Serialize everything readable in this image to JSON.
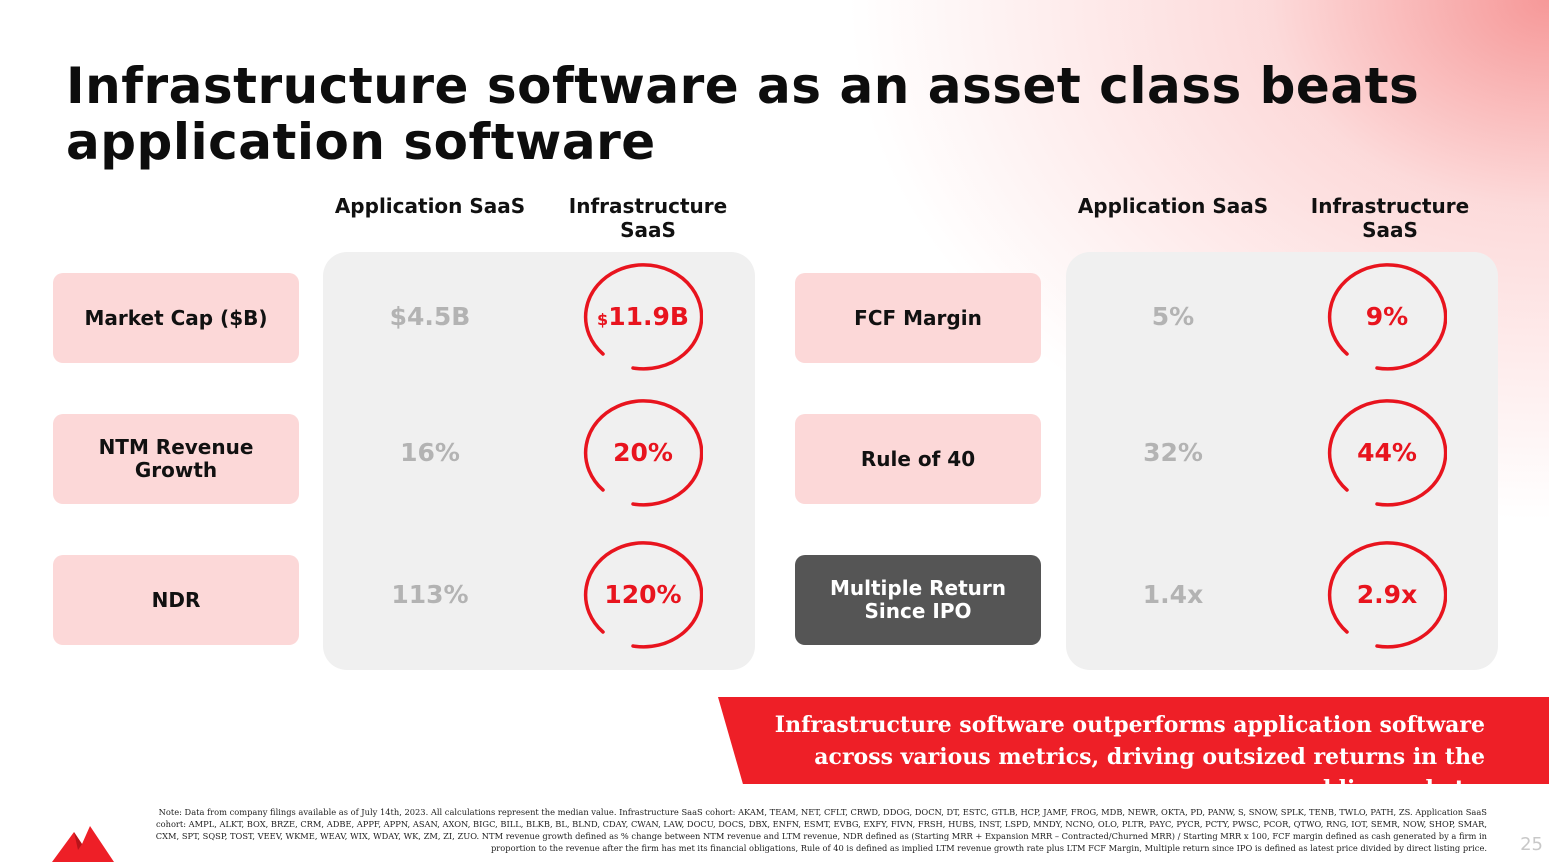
{
  "title": "Infrastructure software as an asset class beats application software",
  "headers": {
    "app": "Application SaaS",
    "infra": "Infrastructure SaaS"
  },
  "left_metrics": [
    {
      "label": "Market Cap ($B)",
      "app": "$4.5B",
      "infra_prefix": "$",
      "infra": "11.9B"
    },
    {
      "label": "NTM Revenue Growth",
      "app": "16%",
      "infra": "20%"
    },
    {
      "label": "NDR",
      "app": "113%",
      "infra": "120%"
    }
  ],
  "right_metrics": [
    {
      "label": "FCF Margin",
      "app": "5%",
      "infra": "9%"
    },
    {
      "label": "Rule of 40",
      "app": "32%",
      "infra": "44%"
    },
    {
      "label": "Multiple Return Since IPO",
      "app": "1.4x",
      "infra": "2.9x"
    }
  ],
  "banner": "Infrastructure software outperforms application software across various metrics, driving outsized returns in the public markets.",
  "note": "Note: Data from company filings available as of July 14th, 2023. All calculations represent the median value. Infrastructure SaaS cohort: AKAM, TEAM, NET, CFLT, CRWD, DDOG, DOCN, DT, ESTC, GTLB, HCP, JAMF, FROG, MDB, NEWR, OKTA, PD, PANW, S, SNOW, SPLK, TENB, TWLO, PATH, ZS. Application SaaS cohort: AMPL, ALKT, BOX, BRZE, CRM, ADBE, APPF, APPN, ASAN, AXON, BIGC, BILL, BLKB, BL, BLND, CDAY, CWAN, LAW, DOCU, DOCS, DBX, ENFN, ESMT, EVBG, EXFY, FIVN, FRSH, HUBS, INST, LSPD, MNDY, NCNO, OLO, PLTR, PAYC, PYCR, PCTY, PWSC, PCOR, QTWO, RNG, IOT, SEMR, NOW, SHOP, SMAR, CXM, SPT, SQSP, TOST, VEEV, WKME, WEAV, WIX, WDAY, WK, ZM, ZI, ZUO. NTM revenue growth defined as % change between NTM revenue and LTM revenue, NDR defined as (Starting MRR + Expansion MRR – Contracted/Churned MRR) / Starting MRR x 100, FCF margin defined as cash generated by a firm in proportion to the revenue after the firm has met its financial obligations, Rule of 40 is defined as implied LTM revenue growth rate plus LTM FCF Margin, Multiple return since IPO is defined as latest price divided by direct listing price.",
  "page_number": "25",
  "colors": {
    "accent": "#ee1f27",
    "label_bg": "#fcd8d8",
    "panel_bg": "#f0f0f0",
    "dark_label": "#555555"
  }
}
